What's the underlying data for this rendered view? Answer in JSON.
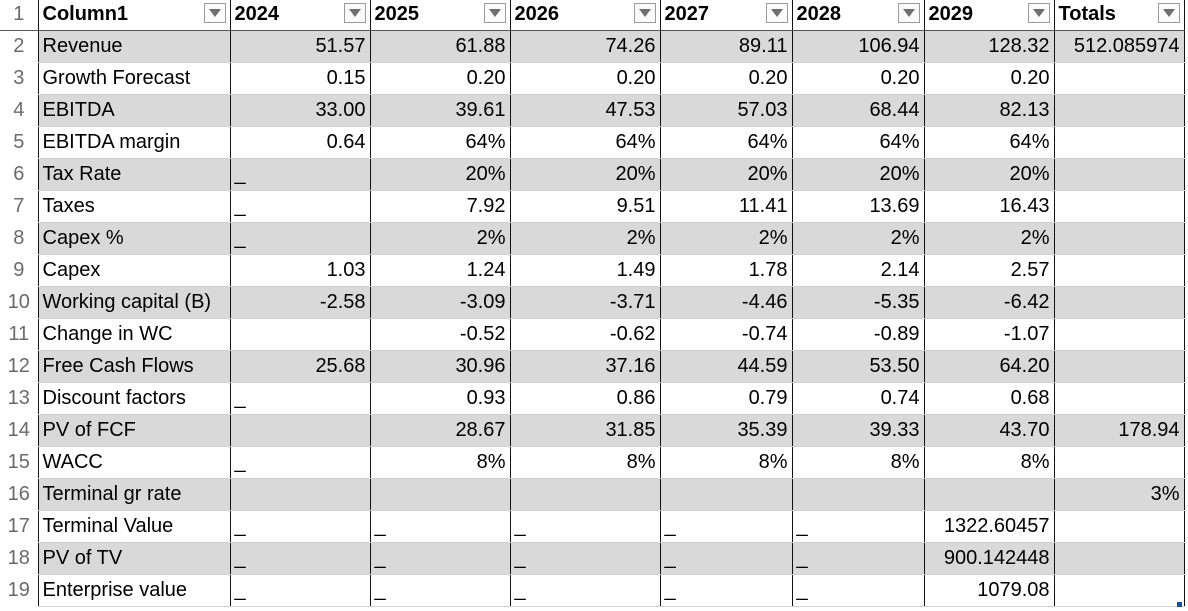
{
  "header": {
    "row_number": "1",
    "columns": [
      "Column1",
      "2024",
      "2025",
      "2026",
      "2027",
      "2028",
      "2029",
      "Totals"
    ]
  },
  "icons": {
    "filter": "filter-dropdown-icon"
  },
  "colors": {
    "band": "#d9d9d9",
    "border": "#111111",
    "row_number_text": "#6b6b6b"
  },
  "rows": [
    {
      "n": "2",
      "shade": true,
      "cells": [
        "Revenue",
        "51.57",
        "61.88",
        "74.26",
        "89.11",
        "106.94",
        "128.32",
        "512.085974"
      ]
    },
    {
      "n": "3",
      "shade": false,
      "cells": [
        "Growth Forecast",
        "0.15",
        "0.20",
        "0.20",
        "0.20",
        "0.20",
        "0.20",
        ""
      ]
    },
    {
      "n": "4",
      "shade": true,
      "cells": [
        "EBITDA",
        "33.00",
        "39.61",
        "47.53",
        "57.03",
        "68.44",
        "82.13",
        ""
      ]
    },
    {
      "n": "5",
      "shade": false,
      "cells": [
        "EBITDA margin",
        "0.64",
        "64%",
        "64%",
        "64%",
        "64%",
        "64%",
        ""
      ]
    },
    {
      "n": "6",
      "shade": true,
      "cells": [
        "Tax Rate",
        "_",
        "20%",
        "20%",
        "20%",
        "20%",
        "20%",
        ""
      ]
    },
    {
      "n": "7",
      "shade": false,
      "cells": [
        "Taxes",
        "_",
        "7.92",
        "9.51",
        "11.41",
        "13.69",
        "16.43",
        ""
      ]
    },
    {
      "n": "8",
      "shade": true,
      "cells": [
        "Capex %",
        "_",
        "2%",
        "2%",
        "2%",
        "2%",
        "2%",
        ""
      ]
    },
    {
      "n": "9",
      "shade": false,
      "cells": [
        "Capex",
        "1.03",
        "1.24",
        "1.49",
        "1.78",
        "2.14",
        "2.57",
        ""
      ]
    },
    {
      "n": "10",
      "shade": true,
      "cells": [
        "Working capital (B)",
        "-2.58",
        "-3.09",
        "-3.71",
        "-4.46",
        "-5.35",
        "-6.42",
        ""
      ]
    },
    {
      "n": "11",
      "shade": false,
      "cells": [
        "Change in WC",
        "",
        "-0.52",
        "-0.62",
        "-0.74",
        "-0.89",
        "-1.07",
        ""
      ]
    },
    {
      "n": "12",
      "shade": true,
      "cells": [
        "Free Cash Flows",
        "25.68",
        "30.96",
        "37.16",
        "44.59",
        "53.50",
        "64.20",
        ""
      ]
    },
    {
      "n": "13",
      "shade": false,
      "cells": [
        "Discount factors",
        "_",
        "0.93",
        "0.86",
        "0.79",
        "0.74",
        "0.68",
        ""
      ]
    },
    {
      "n": "14",
      "shade": true,
      "cells": [
        "PV  of FCF",
        "",
        "28.67",
        "31.85",
        "35.39",
        "39.33",
        "43.70",
        "178.94"
      ]
    },
    {
      "n": "15",
      "shade": false,
      "cells": [
        "WACC",
        "_",
        "8%",
        "8%",
        "8%",
        "8%",
        "8%",
        ""
      ]
    },
    {
      "n": "16",
      "shade": true,
      "cells": [
        "Terminal gr rate",
        "",
        "",
        "",
        "",
        "",
        "",
        "3%"
      ]
    },
    {
      "n": "17",
      "shade": false,
      "cells": [
        "Terminal Value",
        "_",
        "_",
        "_",
        "_",
        "_",
        "1322.60457",
        ""
      ]
    },
    {
      "n": "18",
      "shade": true,
      "cells": [
        "PV of TV",
        "_",
        "_",
        "_",
        "_",
        "_",
        "900.142448",
        ""
      ]
    },
    {
      "n": "19",
      "shade": false,
      "cells": [
        "Enterprise value",
        "_",
        "_",
        "_",
        "_",
        "_",
        "1079.08",
        ""
      ]
    }
  ]
}
